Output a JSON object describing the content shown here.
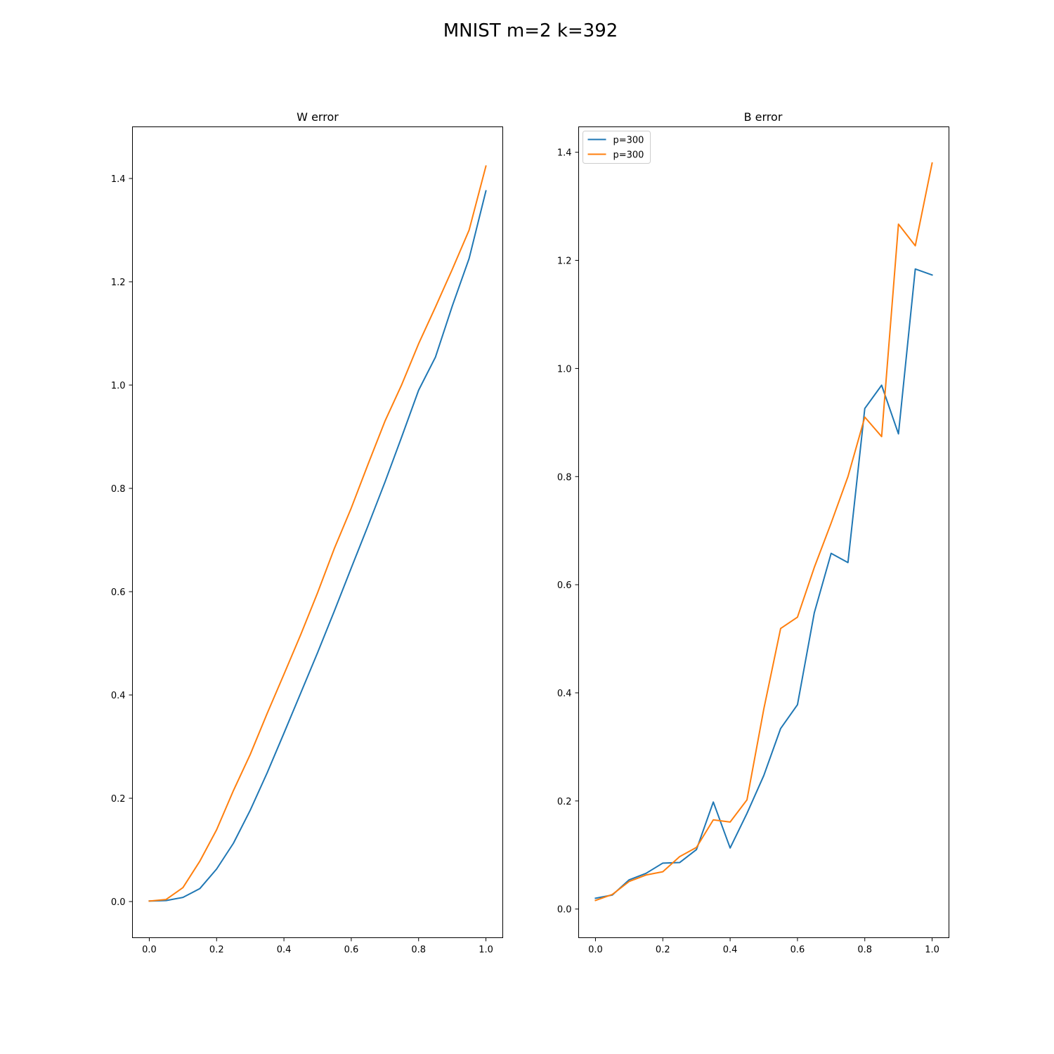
{
  "figure": {
    "title": "MNIST m=2 k=392"
  },
  "chart_data": [
    {
      "type": "line",
      "title": "W error",
      "xlabel": "",
      "ylabel": "",
      "xlim": [
        -0.05,
        1.05
      ],
      "ylim": [
        -0.07,
        1.5
      ],
      "xticks": [
        0.0,
        0.2,
        0.4,
        0.6,
        0.8,
        1.0
      ],
      "xtick_labels": [
        "0.0",
        "0.2",
        "0.4",
        "0.6",
        "0.8",
        "1.0"
      ],
      "yticks": [
        0.0,
        0.2,
        0.4,
        0.6,
        0.8,
        1.0,
        1.2,
        1.4
      ],
      "ytick_labels": [
        "0.0",
        "0.2",
        "0.4",
        "0.6",
        "0.8",
        "1.0",
        "1.2",
        "1.4"
      ],
      "grid": false,
      "legend": null,
      "x": [
        0.0,
        0.05,
        0.1,
        0.15,
        0.2,
        0.25,
        0.3,
        0.35,
        0.4,
        0.45,
        0.5,
        0.55,
        0.6,
        0.65,
        0.7,
        0.75,
        0.8,
        0.85,
        0.9,
        0.95,
        1.0
      ],
      "series": [
        {
          "color": "#1f77b4",
          "values": [
            0.001,
            0.002,
            0.008,
            0.025,
            0.063,
            0.113,
            0.177,
            0.249,
            0.326,
            0.404,
            0.482,
            0.563,
            0.646,
            0.728,
            0.812,
            0.9,
            0.99,
            1.054,
            1.153,
            1.245,
            1.376
          ]
        },
        {
          "color": "#ff7f0e",
          "values": [
            0.001,
            0.004,
            0.027,
            0.078,
            0.139,
            0.215,
            0.285,
            0.364,
            0.44,
            0.517,
            0.598,
            0.684,
            0.762,
            0.847,
            0.93,
            1.001,
            1.08,
            1.151,
            1.224,
            1.3,
            1.424
          ]
        }
      ]
    },
    {
      "type": "line",
      "title": "B error",
      "xlabel": "",
      "ylabel": "",
      "xlim": [
        -0.05,
        1.05
      ],
      "ylim": [
        -0.053,
        1.447
      ],
      "xticks": [
        0.0,
        0.2,
        0.4,
        0.6,
        0.8,
        1.0
      ],
      "xtick_labels": [
        "0.0",
        "0.2",
        "0.4",
        "0.6",
        "0.8",
        "1.0"
      ],
      "yticks": [
        0.0,
        0.2,
        0.4,
        0.6,
        0.8,
        1.0,
        1.2,
        1.4
      ],
      "ytick_labels": [
        "0.0",
        "0.2",
        "0.4",
        "0.6",
        "0.8",
        "1.0",
        "1.2",
        "1.4"
      ],
      "grid": false,
      "legend": "upper-left",
      "x": [
        0.0,
        0.05,
        0.1,
        0.15,
        0.2,
        0.25,
        0.3,
        0.35,
        0.4,
        0.45,
        0.5,
        0.55,
        0.6,
        0.65,
        0.7,
        0.75,
        0.8,
        0.85,
        0.9,
        0.95,
        1.0
      ],
      "series": [
        {
          "name": "p=300",
          "color": "#1f77b4",
          "values": [
            0.02,
            0.026,
            0.054,
            0.066,
            0.085,
            0.086,
            0.11,
            0.198,
            0.113,
            0.177,
            0.247,
            0.334,
            0.378,
            0.548,
            0.658,
            0.641,
            0.926,
            0.969,
            0.879,
            1.184,
            1.173
          ]
        },
        {
          "name": "p=300",
          "color": "#ff7f0e",
          "values": [
            0.016,
            0.027,
            0.051,
            0.063,
            0.069,
            0.097,
            0.114,
            0.165,
            0.161,
            0.202,
            0.37,
            0.519,
            0.54,
            0.632,
            0.714,
            0.8,
            0.91,
            0.874,
            1.267,
            1.227,
            1.38
          ]
        }
      ]
    }
  ]
}
